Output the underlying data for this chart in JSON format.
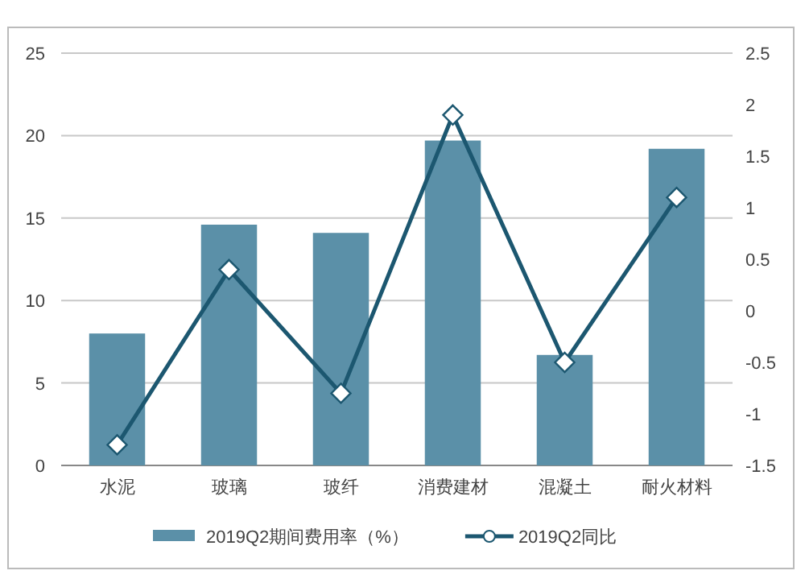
{
  "chart_data": {
    "type": "bar",
    "categories": [
      "水泥",
      "玻璃",
      "玻纤",
      "消费建材",
      "混凝土",
      "耐火材料"
    ],
    "series": [
      {
        "name": "2019Q2期间费用率（%）",
        "color": "#5b90a8",
        "values": [
          8.0,
          14.6,
          14.1,
          19.7,
          6.7,
          19.2
        ]
      },
      {
        "name": "2019Q2同比",
        "type": "line",
        "axis": "y2",
        "color": "#1c5770",
        "marker": "diamond",
        "values": [
          -1.3,
          0.4,
          -0.8,
          1.9,
          -0.5,
          1.1
        ]
      }
    ],
    "ylim": [
      0,
      25
    ],
    "yticks": [
      0,
      5,
      10,
      15,
      20,
      25
    ],
    "y2lim": [
      -1.5,
      2.5
    ],
    "y2ticks": [
      -1.5,
      -1,
      -0.5,
      0,
      0.5,
      1,
      1.5,
      2,
      2.5
    ],
    "grid": "y",
    "legend": "bottom"
  }
}
